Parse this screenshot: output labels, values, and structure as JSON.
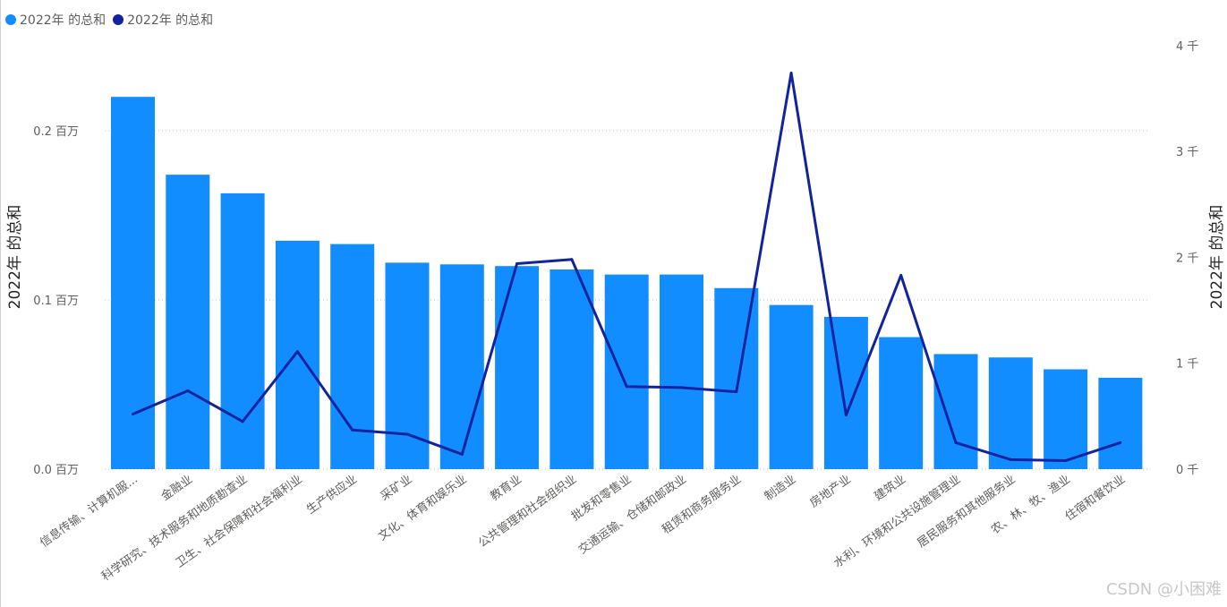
{
  "legend": [
    {
      "label": "2022年 的总和",
      "color": "#118dff"
    },
    {
      "label": "2022年 的总和",
      "color": "#12239e"
    }
  ],
  "watermark": "CSDN @小困难",
  "chart_data": {
    "type": "bar+line",
    "categories": [
      "信息传输、计算机服...",
      "金融业",
      "科学研究、技术服务和地质勘查业",
      "卫生、社会保障和社会福利业",
      "生产供应业",
      "采矿业",
      "文化、体育和娱乐业",
      "教育业",
      "公共管理和社会组织业",
      "批发和零售业",
      "交通运输、仓储和邮政业",
      "租赁和商务服务业",
      "制造业",
      "房地产业",
      "建筑业",
      "水利、环境和公共设施管理业",
      "居民服务和其他服务业",
      "农、林、牧、渔业",
      "住宿和餐饮业"
    ],
    "series": [
      {
        "name": "2022年 的总和",
        "type": "bar",
        "axis": "left",
        "color": "#118dff",
        "values": [
          0.22,
          0.174,
          0.163,
          0.135,
          0.133,
          0.122,
          0.121,
          0.12,
          0.118,
          0.115,
          0.115,
          0.107,
          0.097,
          0.09,
          0.078,
          0.068,
          0.066,
          0.059,
          0.054
        ]
      },
      {
        "name": "2022年 的总和",
        "type": "line",
        "axis": "right",
        "color": "#12239e",
        "values": [
          0.52,
          0.74,
          0.45,
          1.11,
          0.37,
          0.33,
          0.14,
          1.94,
          1.98,
          0.78,
          0.77,
          0.73,
          3.74,
          0.51,
          1.83,
          0.25,
          0.09,
          0.08,
          0.25
        ]
      }
    ],
    "left_axis": {
      "title": "2022年 的总和",
      "min": 0,
      "max": 0.25,
      "ticks": [
        0,
        0.1,
        0.2
      ],
      "tick_labels": [
        "0.0 百万",
        "0.1 百万",
        "0.2 百万"
      ]
    },
    "right_axis": {
      "title": "2022年 的总和",
      "min": 0,
      "max": 4,
      "ticks": [
        0,
        1,
        2,
        3,
        4
      ],
      "tick_labels": [
        "0 千",
        "1 千",
        "2 千",
        "3 千",
        "4 千"
      ]
    },
    "grid": true,
    "legend_position": "top-left"
  }
}
